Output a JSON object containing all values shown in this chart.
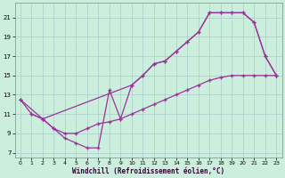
{
  "xlabel": "Windchill (Refroidissement éolien,°C)",
  "bg_color": "#cceedd",
  "grid_color": "#aacccc",
  "line_color": "#993399",
  "xlim": [
    -0.5,
    23.5
  ],
  "ylim": [
    6.5,
    22.5
  ],
  "xticks": [
    0,
    1,
    2,
    3,
    4,
    5,
    6,
    7,
    8,
    9,
    10,
    11,
    12,
    13,
    14,
    15,
    16,
    17,
    18,
    19,
    20,
    21,
    22,
    23
  ],
  "yticks": [
    7,
    9,
    11,
    13,
    15,
    17,
    19,
    21
  ],
  "line1": {
    "x": [
      0,
      1,
      2,
      10,
      11,
      12,
      13,
      14,
      15,
      16,
      17,
      18,
      19,
      20,
      21,
      22,
      23
    ],
    "y": [
      12.5,
      11.0,
      10.5,
      14.0,
      15.0,
      16.2,
      16.5,
      17.5,
      18.5,
      19.5,
      21.5,
      21.5,
      21.5,
      21.5,
      20.5,
      17.0,
      15.0
    ]
  },
  "line2": {
    "x": [
      0,
      2,
      3,
      4,
      5,
      6,
      7,
      8,
      9,
      10,
      11,
      12,
      13,
      14,
      15,
      16,
      17,
      18,
      19,
      20,
      21,
      22,
      23
    ],
    "y": [
      12.5,
      10.5,
      9.5,
      8.5,
      8.0,
      7.5,
      7.5,
      13.5,
      10.5,
      14.0,
      15.0,
      16.2,
      16.5,
      17.5,
      18.5,
      19.5,
      21.5,
      21.5,
      21.5,
      21.5,
      20.5,
      17.0,
      15.0
    ]
  },
  "line3": {
    "x": [
      1,
      2,
      3,
      4,
      5,
      6,
      7,
      8,
      9,
      10,
      11,
      12,
      13,
      14,
      15,
      16,
      17,
      18,
      19,
      20,
      21,
      22,
      23
    ],
    "y": [
      11.0,
      10.5,
      9.5,
      9.0,
      9.0,
      9.5,
      10.0,
      10.2,
      10.5,
      11.0,
      11.5,
      12.0,
      12.5,
      13.0,
      13.5,
      14.0,
      14.5,
      14.8,
      15.0,
      15.0,
      15.0,
      15.0,
      15.0
    ]
  }
}
